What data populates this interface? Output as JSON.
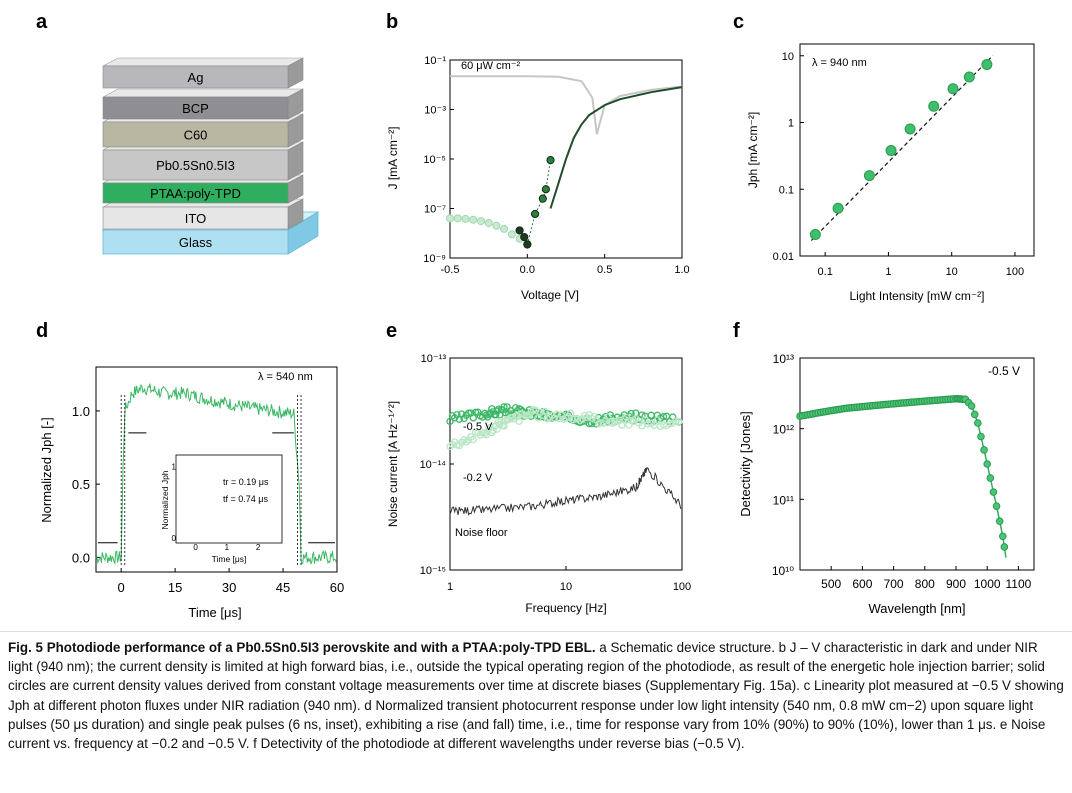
{
  "panels": {
    "a": {
      "letter": "a",
      "layers": [
        {
          "label": "Ag",
          "color": "#b8b8bc"
        },
        {
          "label": "BCP",
          "color": "#8f8f93"
        },
        {
          "label": "C60",
          "color": "#b9b7a2"
        },
        {
          "label": "Pb0.5Sn0.5I3",
          "color": "#c7c7c7"
        },
        {
          "label": "PTAA:poly-TPD",
          "color": "#2fae5f"
        },
        {
          "label": "ITO",
          "color": "#e6e6e6"
        },
        {
          "label": "Glass",
          "color": "#aee0f2"
        }
      ]
    },
    "b": {
      "letter": "b",
      "annotation": "60 μW cm⁻²"
    },
    "c": {
      "letter": "c",
      "annotation": "λ = 940 nm"
    },
    "d": {
      "letter": "d",
      "annotation": "λ = 540 nm",
      "inset_tr": "tr = 0.19 μs",
      "inset_tf": "tf = 0.74 μs",
      "inset_xlabel": "Time [μs]",
      "inset_ylabel": "Normalized Jph"
    },
    "e": {
      "letter": "e",
      "label_05": "-0.5 V",
      "label_02": "-0.2 V",
      "label_noise": "Noise floor"
    },
    "f": {
      "letter": "f",
      "annotation": "-0.5 V"
    }
  },
  "chart_data": [
    {
      "panel": "b",
      "type": "line",
      "xlabel": "Voltage [V]",
      "ylabel": "J [mA cm⁻²]",
      "xlim": [
        -0.5,
        1.0
      ],
      "ylim": [
        1e-09,
        0.1
      ],
      "yscale": "log",
      "xticks": [
        "-0.5",
        "0.0",
        "0.5",
        "1.0"
      ],
      "yticks": [
        "10⁻⁹",
        "10⁻⁷",
        "10⁻⁵",
        "10⁻³",
        "10⁻¹"
      ],
      "series": [
        {
          "style": "light",
          "x": [
            -0.5,
            -0.2,
            0.0,
            0.2,
            0.35,
            0.42,
            0.45,
            0.47,
            0.5,
            0.6,
            0.8,
            1.0
          ],
          "y": [
            0.022,
            0.022,
            0.022,
            0.021,
            0.014,
            0.003,
            0.0001,
            0.0003,
            0.0015,
            0.0035,
            0.0062,
            0.0085
          ]
        },
        {
          "style": "dark",
          "x": [
            0.15,
            0.2,
            0.25,
            0.3,
            0.35,
            0.4,
            0.5,
            0.6,
            0.8,
            1.0
          ],
          "y": [
            1e-07,
            1e-06,
            1e-05,
            7e-05,
            0.00025,
            0.0006,
            0.0015,
            0.0026,
            0.005,
            0.008
          ]
        },
        {
          "style": "open-circles",
          "x": [
            -0.5,
            -0.45,
            -0.4,
            -0.35,
            -0.3,
            -0.25,
            -0.2,
            -0.15,
            -0.1,
            -0.05,
            0.0
          ],
          "y": [
            4e-08,
            4e-08,
            3.8e-08,
            3.5e-08,
            3.1e-08,
            2.6e-08,
            2e-08,
            1.5e-08,
            9e-09,
            6e-09,
            4e-09
          ]
        },
        {
          "style": "solid-circles",
          "x": [
            -0.05,
            -0.02,
            0.0,
            0.05,
            0.1,
            0.12,
            0.15
          ],
          "y": [
            1.3e-08,
            7e-09,
            3.5e-09,
            6e-08,
            2.5e-07,
            6e-07,
            9e-06
          ]
        }
      ]
    },
    {
      "panel": "c",
      "type": "scatter",
      "xlabel": "Light Intensity [mW cm⁻²]",
      "ylabel": "Jph [mA cm⁻²]",
      "xscale": "log",
      "yscale": "log",
      "xlim": [
        0.04,
        200
      ],
      "ylim": [
        0.01,
        15
      ],
      "xticks": [
        "0.1",
        "1",
        "10",
        "100"
      ],
      "yticks": [
        "0.01",
        "0.1",
        "1",
        "10"
      ],
      "x": [
        0.07,
        0.16,
        0.5,
        1.1,
        2.2,
        5.2,
        10.5,
        19,
        36
      ],
      "y": [
        0.021,
        0.052,
        0.16,
        0.38,
        0.8,
        1.75,
        3.2,
        4.8,
        7.4
      ]
    },
    {
      "panel": "d",
      "type": "line",
      "xlabel": "Time [μs]",
      "ylabel": "Normalized Jph [-]",
      "xlim": [
        -7,
        60
      ],
      "ylim": [
        -0.1,
        1.3
      ],
      "xticks": [
        "0",
        "15",
        "30",
        "45",
        "60"
      ],
      "yticks": [
        "0.0",
        "0.5",
        "1.0"
      ],
      "x": [
        -7,
        0,
        0.5,
        1,
        3,
        6,
        9,
        12,
        18,
        24,
        30,
        36,
        42,
        48,
        49.5,
        50,
        51,
        55,
        60
      ],
      "y": [
        0.0,
        0.0,
        0.6,
        1.0,
        1.12,
        1.16,
        1.14,
        1.12,
        1.12,
        1.08,
        1.05,
        1.02,
        1.0,
        0.98,
        0.5,
        0.0,
        0.0,
        0.0,
        0.0
      ],
      "inset": {
        "x": [
          -0.5,
          0,
          0.1,
          0.2,
          0.3,
          0.5,
          0.8,
          1.2,
          1.8,
          2.5
        ],
        "y": [
          0,
          0,
          0.4,
          0.9,
          1.0,
          0.75,
          0.45,
          0.2,
          0.08,
          0.03
        ]
      }
    },
    {
      "panel": "e",
      "type": "line",
      "xlabel": "Frequency [Hz]",
      "ylabel": "Noise current [A Hz⁻¹ᐟ²]",
      "xscale": "log",
      "yscale": "log",
      "xlim": [
        1,
        100
      ],
      "ylim": [
        1e-15,
        1e-13
      ],
      "xticks": [
        "1",
        "10",
        "100"
      ],
      "yticks": [
        "10⁻¹⁵",
        "10⁻¹⁴",
        "10⁻¹³"
      ],
      "series": [
        {
          "name": "-0.5 V",
          "x": [
            1,
            2,
            3,
            5,
            10,
            20,
            40,
            100
          ],
          "y": [
            2.6e-14,
            3e-14,
            3.2e-14,
            3e-14,
            2.7e-14,
            2.6e-14,
            2.8e-14,
            2.7e-14
          ]
        },
        {
          "name": "-0.2 V",
          "x": [
            1,
            2,
            3,
            5,
            10,
            20,
            40,
            100
          ],
          "y": [
            1.5e-14,
            2e-14,
            2.5e-14,
            3e-14,
            2.8e-14,
            2.6e-14,
            2.5e-14,
            2.4e-14
          ]
        },
        {
          "name": "Noise floor",
          "x": [
            1,
            2,
            5,
            10,
            20,
            40,
            50,
            100
          ],
          "y": [
            3.6e-15,
            3.7e-15,
            4e-15,
            4.5e-15,
            5e-15,
            6e-15,
            9e-15,
            4e-15
          ]
        }
      ]
    },
    {
      "panel": "f",
      "type": "line",
      "xlabel": "Wavelength [nm]",
      "ylabel": "Detectivity [Jones]",
      "yscale": "log",
      "xlim": [
        400,
        1150
      ],
      "ylim": [
        10000000000.0,
        10000000000000.0
      ],
      "xticks": [
        "500",
        "600",
        "700",
        "800",
        "900",
        "1000",
        "1100"
      ],
      "yticks": [
        "10¹⁰",
        "10¹¹",
        "10¹²",
        "10¹³"
      ],
      "x": [
        400,
        450,
        500,
        550,
        600,
        650,
        700,
        750,
        800,
        850,
        900,
        930,
        950,
        970,
        990,
        1010,
        1030,
        1050,
        1060
      ],
      "y": [
        1500000000000.0,
        1650000000000.0,
        1800000000000.0,
        1950000000000.0,
        2050000000000.0,
        2150000000000.0,
        2250000000000.0,
        2350000000000.0,
        2450000000000.0,
        2550000000000.0,
        2650000000000.0,
        2600000000000.0,
        2100000000000.0,
        1200000000000.0,
        500000000000.0,
        200000000000.0,
        80000000000.0,
        30000000000.0,
        15000000000.0
      ]
    }
  ],
  "caption": {
    "lead": "Fig. 5 Photodiode performance of a Pb0.5Sn0.5I3 perovskite and with a PTAA:poly-TPD EBL.",
    "body": "a Schematic device structure. b J – V characteristic in dark and under NIR light (940 nm); the current density is limited at high forward bias, i.e., outside the typical operating region of the photodiode, as result of the energetic hole injection barrier; solid circles are current density values derived from constant voltage measurements over time at discrete biases (Supplementary Fig. 15a). c Linearity plot measured at −0.5 V showing Jph at different photon fluxes under NIR radiation (940 nm). d Normalized transient photocurrent response under low light intensity (540 nm, 0.8 mW cm−2) upon square light pulses (50 μs duration) and single peak pulses (6 ns, inset), exhibiting a rise (and fall) time, i.e., time for response vary from 10% (90%) to 90% (10%), lower than 1 μs. e Noise current vs. frequency at −0.2 and −0.5 V. f Detectivity of the photodiode at different wavelengths under reverse bias (−0.5 V)."
  }
}
